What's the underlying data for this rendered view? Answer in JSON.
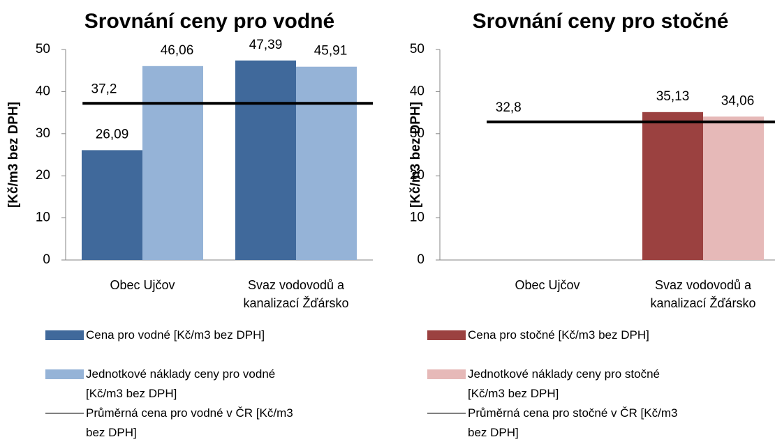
{
  "chart_data": [
    {
      "type": "bar",
      "title": "Srovnání ceny pro vodné",
      "y_label": "[Kč/m3 bez DPH]",
      "categories": [
        "Obec Ujčov",
        "Svaz vodovodů a kanalizací Žďársko"
      ],
      "series": [
        {
          "name": "Cena pro vodné [Kč/m3 bez DPH]",
          "color": "#40699b",
          "values": [
            26.09,
            47.39
          ],
          "value_labels": [
            "26,09",
            "47,39"
          ]
        },
        {
          "name": "Jednotkové náklady ceny pro vodné [Kč/m3 bez DPH]",
          "color": "#95b3d7",
          "values": [
            46.06,
            45.91
          ],
          "value_labels": [
            "46,06",
            "45,91"
          ]
        },
        {
          "name": "Průměrná cena pro vodné v ČR [Kč/m3 bez DPH]",
          "color": "#000000",
          "type": "line",
          "values": [
            37.2,
            37.2
          ],
          "value_labels": [
            "37,2",
            null
          ]
        }
      ],
      "ylim": [
        0,
        50
      ],
      "yticks": [
        0,
        10,
        20,
        30,
        40,
        50
      ]
    },
    {
      "type": "bar",
      "title": "Srovnání ceny pro stočné",
      "y_label": "[Kč/m3 bez DPH]",
      "categories": [
        "Obec Ujčov",
        "Svaz vodovodů a kanalizací Žďársko"
      ],
      "series": [
        {
          "name": "Cena pro stočné [Kč/m3 bez DPH]",
          "color": "#9b4140",
          "values": [
            null,
            35.13
          ],
          "value_labels": [
            null,
            "35,13"
          ]
        },
        {
          "name": "Jednotkové náklady ceny pro stočné [Kč/m3 bez DPH]",
          "color": "#e6b9b8",
          "values": [
            null,
            34.06
          ],
          "value_labels": [
            null,
            "34,06"
          ]
        },
        {
          "name": "Průměrná cena pro stočné v ČR [Kč/m3 bez DPH]",
          "color": "#000000",
          "type": "line",
          "values": [
            32.8,
            32.8
          ],
          "value_labels": [
            "32,8",
            null
          ]
        }
      ],
      "ylim": [
        0,
        50
      ],
      "yticks": [
        0,
        10,
        20,
        30,
        40,
        50
      ]
    }
  ]
}
